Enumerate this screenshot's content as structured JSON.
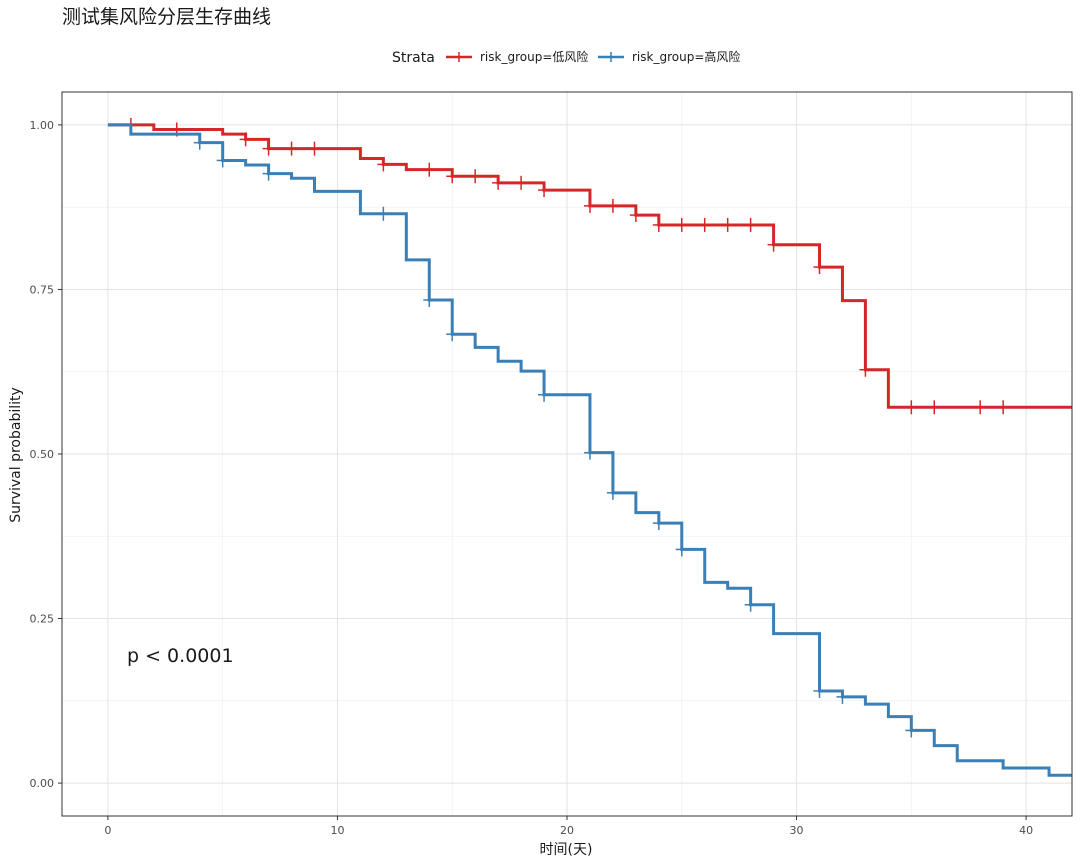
{
  "chart_data": {
    "type": "line",
    "subtype": "kaplan-meier step",
    "title": "测试集风险分层生存曲线",
    "xlabel": "时间(天)",
    "ylabel": "Survival probability",
    "xlim": [
      -2,
      42
    ],
    "ylim": [
      -0.05,
      1.05
    ],
    "x_ticks": [
      0,
      10,
      20,
      30,
      40
    ],
    "y_ticks": [
      0.0,
      0.25,
      0.5,
      0.75,
      1.0
    ],
    "x_tick_labels": [
      "0",
      "10",
      "20",
      "30",
      "40"
    ],
    "y_tick_labels": [
      "0.00",
      "0.25",
      "0.50",
      "0.75",
      "1.00"
    ],
    "grid": true,
    "legend_title": "Strata",
    "legend_position": "top",
    "annotation": "p < 0.0001",
    "series": [
      {
        "name": "risk_group=低风险",
        "color": "#d62728",
        "steps": [
          [
            0,
            1.0
          ],
          [
            2,
            0.993
          ],
          [
            5,
            0.986
          ],
          [
            6,
            0.978
          ],
          [
            7,
            0.964
          ],
          [
            11,
            0.949
          ],
          [
            12,
            0.94
          ],
          [
            13,
            0.932
          ],
          [
            15,
            0.922
          ],
          [
            17,
            0.912
          ],
          [
            19,
            0.901
          ],
          [
            21,
            0.877
          ],
          [
            23,
            0.863
          ],
          [
            24,
            0.848
          ],
          [
            29,
            0.818
          ],
          [
            31,
            0.784
          ],
          [
            32,
            0.733
          ],
          [
            33,
            0.628
          ],
          [
            34,
            0.571
          ],
          [
            42,
            0.571
          ]
        ],
        "censored": [
          1,
          3,
          6,
          7,
          8,
          9,
          12,
          14,
          15,
          16,
          17,
          18,
          19,
          21,
          22,
          23,
          24,
          25,
          26,
          27,
          28,
          29,
          31,
          33,
          35,
          36,
          38,
          39
        ]
      },
      {
        "name": "risk_group=高风险",
        "color": "#3a7fb5",
        "steps": [
          [
            0,
            1.0
          ],
          [
            1,
            0.986
          ],
          [
            4,
            0.973
          ],
          [
            5,
            0.946
          ],
          [
            6,
            0.939
          ],
          [
            7,
            0.926
          ],
          [
            8,
            0.919
          ],
          [
            9,
            0.899
          ],
          [
            11,
            0.865
          ],
          [
            13,
            0.795
          ],
          [
            14,
            0.734
          ],
          [
            15,
            0.682
          ],
          [
            16,
            0.662
          ],
          [
            17,
            0.641
          ],
          [
            18,
            0.626
          ],
          [
            19,
            0.59
          ],
          [
            21,
            0.502
          ],
          [
            22,
            0.441
          ],
          [
            23,
            0.411
          ],
          [
            24,
            0.395
          ],
          [
            25,
            0.355
          ],
          [
            26,
            0.305
          ],
          [
            27,
            0.296
          ],
          [
            28,
            0.271
          ],
          [
            29,
            0.227
          ],
          [
            31,
            0.14
          ],
          [
            32,
            0.131
          ],
          [
            33,
            0.12
          ],
          [
            34,
            0.101
          ],
          [
            35,
            0.08
          ],
          [
            36,
            0.057
          ],
          [
            37,
            0.034
          ],
          [
            39,
            0.023
          ],
          [
            41,
            0.012
          ],
          [
            42,
            0.012
          ]
        ],
        "censored": [
          4,
          5,
          7,
          12,
          14,
          15,
          19,
          21,
          22,
          24,
          25,
          28,
          31,
          32,
          35
        ]
      }
    ]
  }
}
